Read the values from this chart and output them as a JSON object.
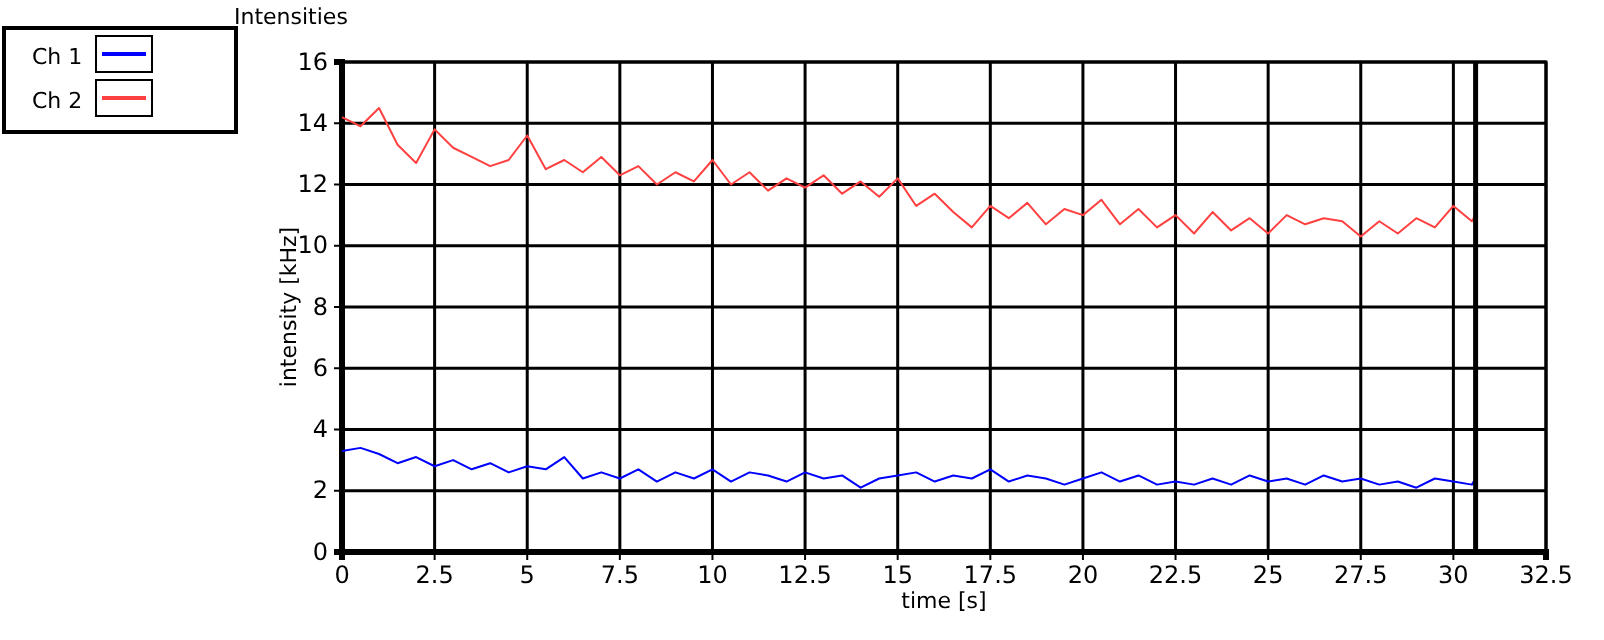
{
  "chart_data": {
    "type": "line",
    "title": "Intensities",
    "xlabel": "time [s]",
    "ylabel": "intensity [kHz]",
    "x": [
      0,
      0.5,
      1,
      1.5,
      2,
      2.5,
      3,
      3.5,
      4,
      4.5,
      5,
      5.5,
      6,
      6.5,
      7,
      7.5,
      8,
      8.5,
      9,
      9.5,
      10,
      10.5,
      11,
      11.5,
      12,
      12.5,
      13,
      13.5,
      14,
      14.5,
      15,
      15.5,
      16,
      16.5,
      17,
      17.5,
      18,
      18.5,
      19,
      19.5,
      20,
      20.5,
      21,
      21.5,
      22,
      22.5,
      23,
      23.5,
      24,
      24.5,
      25,
      25.5,
      26,
      26.5,
      27,
      27.5,
      28,
      28.5,
      29,
      29.5,
      30,
      30.5,
      30.6
    ],
    "series": [
      {
        "name": "Ch 1",
        "color": "#0000ff",
        "values": [
          3.3,
          3.4,
          3.2,
          2.9,
          3.1,
          2.8,
          3.0,
          2.7,
          2.9,
          2.6,
          2.8,
          2.7,
          3.1,
          2.4,
          2.6,
          2.4,
          2.7,
          2.3,
          2.6,
          2.4,
          2.7,
          2.3,
          2.6,
          2.5,
          2.3,
          2.6,
          2.4,
          2.5,
          2.1,
          2.4,
          2.5,
          2.6,
          2.3,
          2.5,
          2.4,
          2.7,
          2.3,
          2.5,
          2.4,
          2.2,
          2.4,
          2.6,
          2.3,
          2.5,
          2.2,
          2.3,
          2.2,
          2.4,
          2.2,
          2.5,
          2.3,
          2.4,
          2.2,
          2.5,
          2.3,
          2.4,
          2.2,
          2.3,
          2.1,
          2.4,
          2.3,
          2.2,
          2.4
        ]
      },
      {
        "name": "Ch 2",
        "color": "#ff4040",
        "values": [
          14.2,
          13.9,
          14.5,
          13.3,
          12.7,
          13.8,
          13.2,
          12.9,
          12.6,
          12.8,
          13.6,
          12.5,
          12.8,
          12.4,
          12.9,
          12.3,
          12.6,
          12.0,
          12.4,
          12.1,
          12.8,
          12.0,
          12.4,
          11.8,
          12.2,
          11.9,
          12.3,
          11.7,
          12.1,
          11.6,
          12.2,
          11.3,
          11.7,
          11.1,
          10.6,
          11.3,
          10.9,
          11.4,
          10.7,
          11.2,
          11.0,
          11.5,
          10.7,
          11.2,
          10.6,
          11.0,
          10.4,
          11.1,
          10.5,
          10.9,
          10.4,
          11.0,
          10.7,
          10.9,
          10.8,
          10.3,
          10.8,
          10.4,
          10.9,
          10.6,
          11.3,
          10.8,
          11.0
        ]
      }
    ],
    "xlim": [
      0,
      32.5
    ],
    "xticks": [
      0,
      2.5,
      5,
      7.5,
      10,
      12.5,
      15,
      17.5,
      20,
      22.5,
      25,
      27.5,
      30,
      32.5
    ],
    "ylim": [
      0,
      16
    ],
    "yticks": [
      0,
      2,
      4,
      6,
      8,
      10,
      12,
      14,
      16
    ],
    "ref_lines": [
      {
        "axis": "x",
        "value": 30.6,
        "color": "#000000"
      }
    ],
    "grid": true,
    "legend": "top left",
    "marker": "none",
    "line_style": "solid"
  }
}
